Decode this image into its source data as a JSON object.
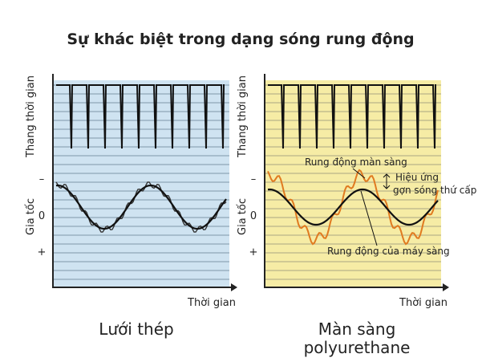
{
  "title": "Sự khác biệt trong dạng sóng rung động",
  "panels": [
    {
      "time_scale_label": "Thang thời gian",
      "acceleration_label": "Gia tốc",
      "x_axis_label": "Thời gian",
      "acceleration_ticks": [
        "–",
        "0",
        "+"
      ],
      "caption": [
        "Lưới thép"
      ]
    },
    {
      "time_scale_label": "Thang thời gian",
      "acceleration_label": "Gia tốc",
      "x_axis_label": "Thời gian",
      "acceleration_ticks": [
        "–",
        "0",
        "+"
      ],
      "caption": [
        "Màn sàng",
        "polyurethane"
      ],
      "annotations": [
        "Rung động màn sàng",
        "Hiệu ứng",
        "gợn sóng thứ cấp",
        "Rung động của máy sàng"
      ]
    }
  ]
}
